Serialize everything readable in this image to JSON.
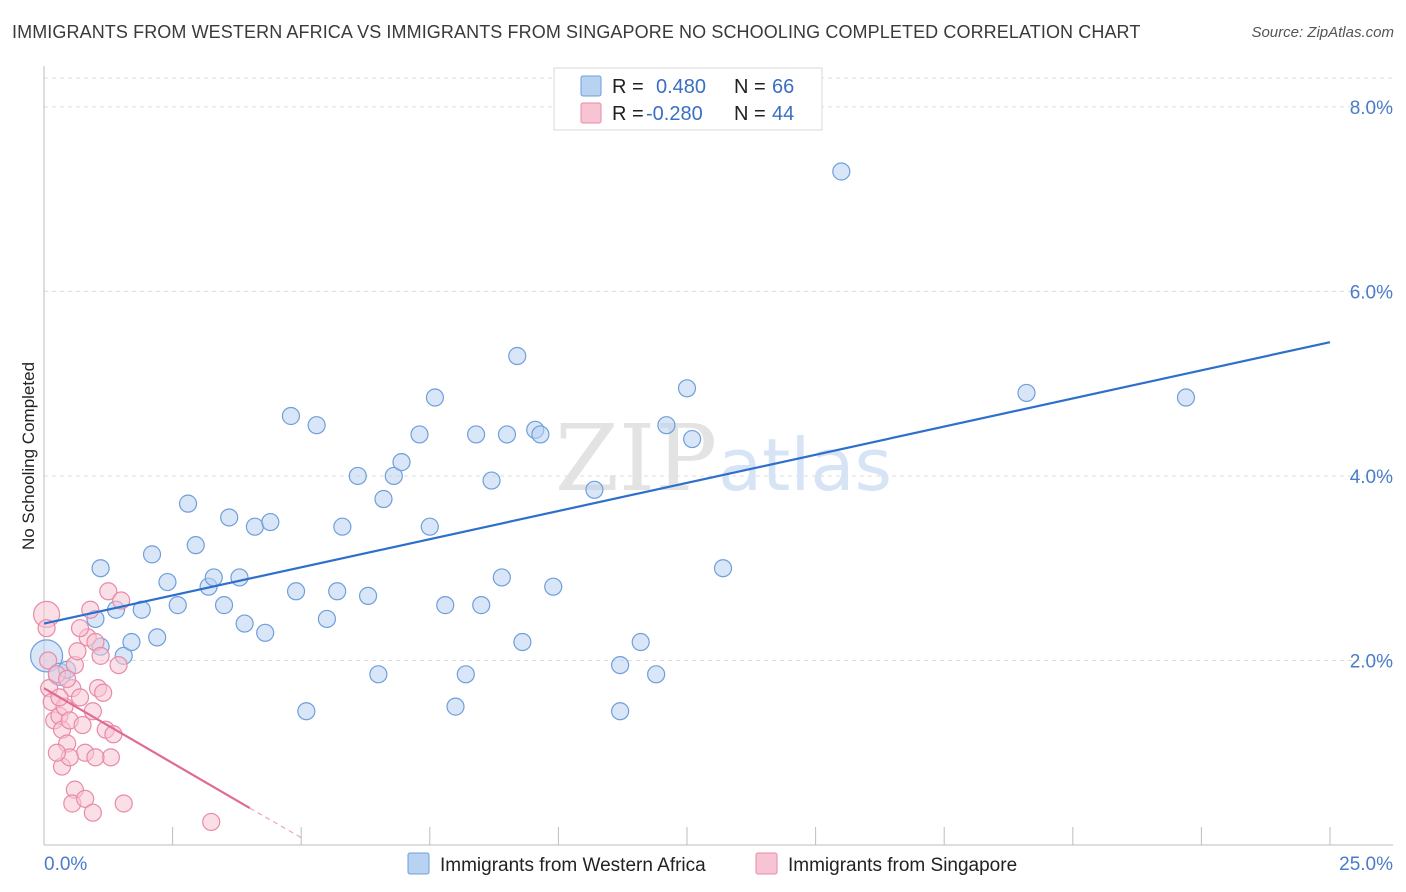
{
  "header": {
    "title": "IMMIGRANTS FROM WESTERN AFRICA VS IMMIGRANTS FROM SINGAPORE NO SCHOOLING COMPLETED CORRELATION CHART",
    "source": "Source: ZipAtlas.com"
  },
  "watermark": {
    "zip": "ZIP",
    "atlas": "atlas"
  },
  "legend": {
    "rows": [
      {
        "r_label": "R =",
        "r_value": "0.480",
        "n_label": "N =",
        "n_value": "66",
        "color": "#9ec3f0"
      },
      {
        "r_label": "R =",
        "r_value": "-0.280",
        "n_label": "N =",
        "n_value": "44",
        "color": "#f5b8c8"
      }
    ]
  },
  "colors": {
    "blue_fill": "#b8d2f2",
    "blue_stroke": "#6f9fdb",
    "blue_line": "#2f6fcc",
    "pink_fill": "#f7c4d3",
    "pink_stroke": "#e98aa8",
    "pink_line": "#e06a95",
    "grid": "#dcdcdc",
    "axis_label": "#4a7cc9"
  },
  "chart_data": {
    "type": "scatter",
    "title": "IMMIGRANTS FROM WESTERN AFRICA VS IMMIGRANTS FROM SINGAPORE NO SCHOOLING COMPLETED CORRELATION CHART",
    "xlabel": "",
    "ylabel": "No Schooling Completed",
    "xlim": [
      0,
      25
    ],
    "ylim": [
      0,
      8.4
    ],
    "x_tick_labels": [
      "0.0%",
      "25.0%"
    ],
    "y_ticks": [
      2,
      4,
      6,
      8
    ],
    "y_tick_labels": [
      "2.0%",
      "4.0%",
      "6.0%",
      "8.0%"
    ],
    "grid": true,
    "legend_position": "top-center",
    "series": [
      {
        "name": "Immigrants from Western Africa",
        "trend": {
          "x": [
            0.0,
            25.0
          ],
          "y": [
            2.4,
            5.45
          ]
        },
        "points": [
          {
            "x": 0.05,
            "y": 2.05,
            "s": 16
          },
          {
            "x": 0.3,
            "y": 1.85,
            "s": 11
          },
          {
            "x": 0.45,
            "y": 1.9
          },
          {
            "x": 1.1,
            "y": 2.15
          },
          {
            "x": 1.0,
            "y": 2.45
          },
          {
            "x": 1.1,
            "y": 3.0
          },
          {
            "x": 1.4,
            "y": 2.55
          },
          {
            "x": 1.55,
            "y": 2.05
          },
          {
            "x": 1.7,
            "y": 2.2
          },
          {
            "x": 1.9,
            "y": 2.55
          },
          {
            "x": 2.1,
            "y": 3.15
          },
          {
            "x": 2.2,
            "y": 2.25
          },
          {
            "x": 2.4,
            "y": 2.85
          },
          {
            "x": 2.6,
            "y": 2.6
          },
          {
            "x": 2.8,
            "y": 3.7
          },
          {
            "x": 2.95,
            "y": 3.25
          },
          {
            "x": 3.2,
            "y": 2.8
          },
          {
            "x": 3.3,
            "y": 2.9
          },
          {
            "x": 3.5,
            "y": 2.6
          },
          {
            "x": 3.6,
            "y": 3.55
          },
          {
            "x": 3.8,
            "y": 2.9
          },
          {
            "x": 3.9,
            "y": 2.4
          },
          {
            "x": 4.1,
            "y": 3.45
          },
          {
            "x": 4.4,
            "y": 3.5
          },
          {
            "x": 4.3,
            "y": 2.3
          },
          {
            "x": 4.8,
            "y": 4.65
          },
          {
            "x": 4.9,
            "y": 2.75
          },
          {
            "x": 5.1,
            "y": 1.45
          },
          {
            "x": 5.3,
            "y": 4.55
          },
          {
            "x": 5.5,
            "y": 2.45
          },
          {
            "x": 5.7,
            "y": 2.75
          },
          {
            "x": 5.8,
            "y": 3.45
          },
          {
            "x": 6.1,
            "y": 4.0
          },
          {
            "x": 6.3,
            "y": 2.7
          },
          {
            "x": 6.5,
            "y": 1.85
          },
          {
            "x": 6.6,
            "y": 3.75
          },
          {
            "x": 6.8,
            "y": 4.0
          },
          {
            "x": 6.95,
            "y": 4.15
          },
          {
            "x": 7.3,
            "y": 4.45
          },
          {
            "x": 7.5,
            "y": 3.45
          },
          {
            "x": 7.6,
            "y": 4.85
          },
          {
            "x": 7.8,
            "y": 2.6
          },
          {
            "x": 8.0,
            "y": 1.5
          },
          {
            "x": 8.2,
            "y": 1.85
          },
          {
            "x": 8.4,
            "y": 4.45
          },
          {
            "x": 8.5,
            "y": 2.6
          },
          {
            "x": 8.7,
            "y": 3.95
          },
          {
            "x": 8.9,
            "y": 2.9
          },
          {
            "x": 9.0,
            "y": 4.45
          },
          {
            "x": 9.3,
            "y": 2.2
          },
          {
            "x": 9.2,
            "y": 5.3
          },
          {
            "x": 9.55,
            "y": 4.5
          },
          {
            "x": 9.9,
            "y": 2.8
          },
          {
            "x": 10.7,
            "y": 3.85
          },
          {
            "x": 11.2,
            "y": 1.95
          },
          {
            "x": 11.2,
            "y": 1.45
          },
          {
            "x": 11.6,
            "y": 2.2
          },
          {
            "x": 11.9,
            "y": 1.85
          },
          {
            "x": 12.1,
            "y": 4.55
          },
          {
            "x": 12.5,
            "y": 4.95
          },
          {
            "x": 12.6,
            "y": 4.4
          },
          {
            "x": 13.2,
            "y": 3.0
          },
          {
            "x": 15.5,
            "y": 7.3
          },
          {
            "x": 19.1,
            "y": 4.9
          },
          {
            "x": 22.2,
            "y": 4.85
          },
          {
            "x": 9.65,
            "y": 4.45
          }
        ]
      },
      {
        "name": "Immigrants from Singapore",
        "trend": {
          "x": [
            0.0,
            4.0
          ],
          "y": [
            1.7,
            0.4
          ]
        },
        "trend_ext": {
          "x": [
            4.0,
            5.0
          ],
          "y": [
            0.4,
            0.08
          ]
        },
        "points": [
          {
            "x": 0.05,
            "y": 2.5,
            "s": 13
          },
          {
            "x": 0.05,
            "y": 2.35
          },
          {
            "x": 0.08,
            "y": 2.0
          },
          {
            "x": 0.1,
            "y": 1.7
          },
          {
            "x": 0.15,
            "y": 1.55
          },
          {
            "x": 0.2,
            "y": 1.35
          },
          {
            "x": 0.25,
            "y": 1.85
          },
          {
            "x": 0.3,
            "y": 1.4
          },
          {
            "x": 0.35,
            "y": 1.25
          },
          {
            "x": 0.4,
            "y": 1.5
          },
          {
            "x": 0.45,
            "y": 1.1
          },
          {
            "x": 0.5,
            "y": 1.35
          },
          {
            "x": 0.55,
            "y": 1.7
          },
          {
            "x": 0.6,
            "y": 1.95
          },
          {
            "x": 0.65,
            "y": 2.1
          },
          {
            "x": 0.7,
            "y": 1.6
          },
          {
            "x": 0.75,
            "y": 1.3
          },
          {
            "x": 0.8,
            "y": 1.0
          },
          {
            "x": 0.85,
            "y": 2.25
          },
          {
            "x": 0.9,
            "y": 2.55
          },
          {
            "x": 0.95,
            "y": 1.45
          },
          {
            "x": 1.0,
            "y": 2.2
          },
          {
            "x": 1.05,
            "y": 1.7
          },
          {
            "x": 1.1,
            "y": 2.05
          },
          {
            "x": 1.15,
            "y": 1.65
          },
          {
            "x": 1.2,
            "y": 1.25
          },
          {
            "x": 1.25,
            "y": 2.75
          },
          {
            "x": 1.3,
            "y": 0.95
          },
          {
            "x": 1.35,
            "y": 1.2
          },
          {
            "x": 0.35,
            "y": 0.85
          },
          {
            "x": 0.5,
            "y": 0.95
          },
          {
            "x": 0.6,
            "y": 0.6
          },
          {
            "x": 0.55,
            "y": 0.45
          },
          {
            "x": 0.8,
            "y": 0.5
          },
          {
            "x": 0.95,
            "y": 0.35
          },
          {
            "x": 1.5,
            "y": 2.65
          },
          {
            "x": 1.45,
            "y": 1.95
          },
          {
            "x": 1.55,
            "y": 0.45
          },
          {
            "x": 0.3,
            "y": 1.6
          },
          {
            "x": 0.45,
            "y": 1.8
          },
          {
            "x": 1.0,
            "y": 0.95
          },
          {
            "x": 0.25,
            "y": 1.0
          },
          {
            "x": 3.25,
            "y": 0.25
          },
          {
            "x": 0.7,
            "y": 2.35
          }
        ]
      }
    ]
  },
  "bottom_legend": {
    "items": [
      {
        "label": "Immigrants from Western Africa"
      },
      {
        "label": "Immigrants from Singapore"
      }
    ]
  }
}
